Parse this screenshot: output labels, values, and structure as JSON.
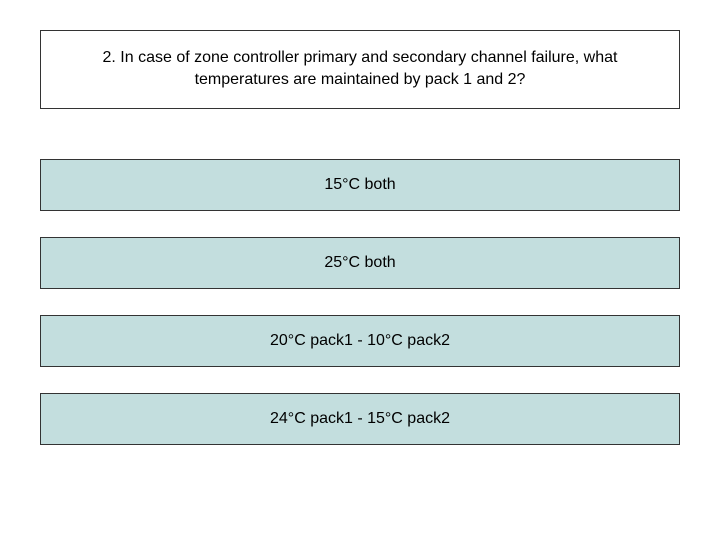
{
  "question": {
    "text": "2. In case of zone controller primary and secondary channel failure, what temperatures are maintained by pack 1 and 2?",
    "box_border_color": "#333333",
    "box_bg": "#ffffff",
    "font_size": 16
  },
  "options": [
    {
      "label": "15°C both"
    },
    {
      "label": "25°C both"
    },
    {
      "label": "20°C pack1 - 10°C pack2"
    },
    {
      "label": "24°C pack1 - 15°C pack2"
    }
  ],
  "option_style": {
    "bg_color": "#c3dede",
    "border_color": "#333333",
    "font_size": 16
  }
}
